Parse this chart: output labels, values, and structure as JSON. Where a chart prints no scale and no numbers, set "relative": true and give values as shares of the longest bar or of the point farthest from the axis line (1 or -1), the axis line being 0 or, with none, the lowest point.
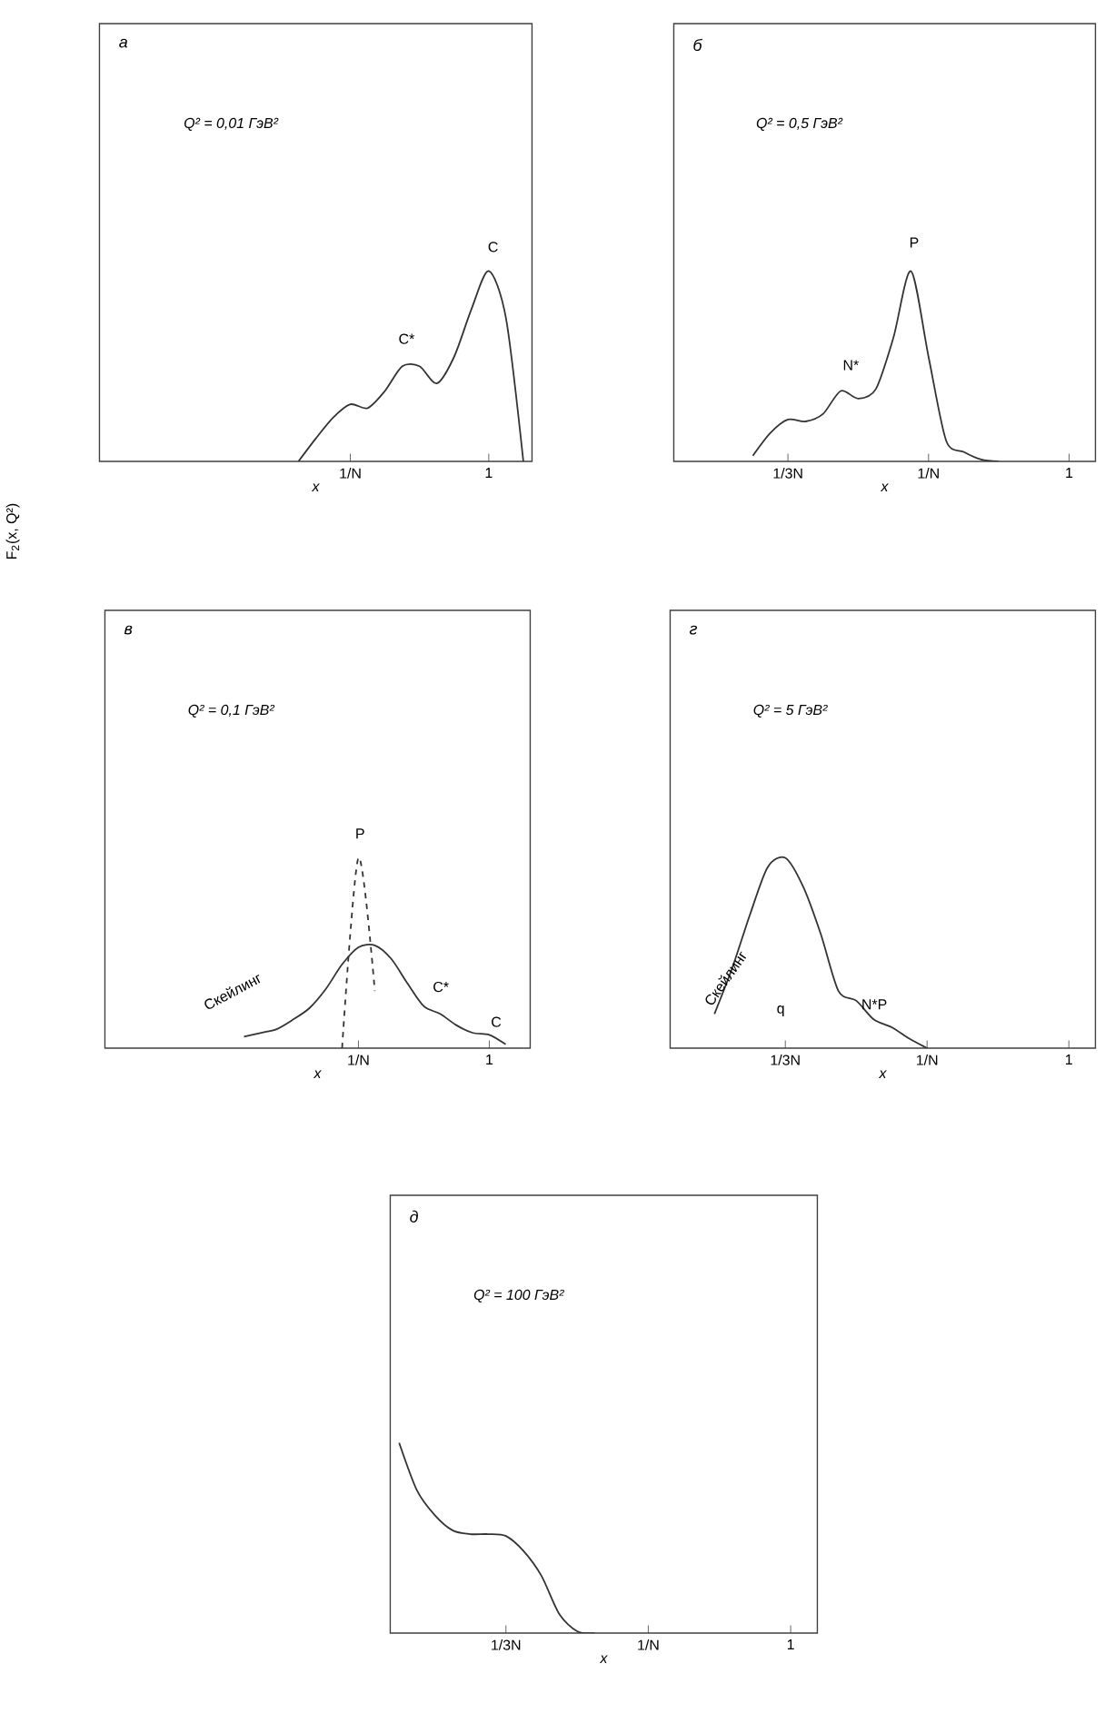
{
  "chart_data": [
    {
      "type": "line",
      "title": "а",
      "subtitle": "Q² = 0,01 ГэВ²",
      "xlabel": "x",
      "ylabel": "F$_{2}$(x, Q²)",
      "relative": true,
      "tick_labels": "x",
      "categories": [
        null,
        null,
        null,
        null,
        null,
        null,
        null,
        null,
        null,
        null,
        null,
        null,
        null,
        null,
        "1/N",
        null,
        null,
        null,
        null,
        null,
        null,
        null,
        "1",
        null,
        null
      ],
      "series": [
        {
          "color": "#333333",
          "values": [
            null,
            null,
            null,
            null,
            null,
            null,
            null,
            null,
            null,
            null,
            null,
            0,
            0.12,
            0.23,
            0.3,
            0.28,
            0.37,
            0.5,
            0.5,
            0.41,
            0.55,
            0.8,
            1,
            0.75,
            0
          ]
        }
      ],
      "annotations": [
        "C*",
        "C"
      ]
    },
    {
      "type": "line",
      "title": "б",
      "subtitle": "Q² = 0,5 ГэВ²",
      "xlabel": "x",
      "relative": true,
      "tick_labels": "x",
      "categories": [
        null,
        null,
        null,
        null,
        null,
        null,
        "1/3N",
        null,
        null,
        null,
        null,
        null,
        null,
        null,
        "1/N",
        null,
        null,
        null,
        null,
        null,
        null,
        null,
        "1",
        null
      ],
      "series": [
        {
          "color": "#333333",
          "values": [
            null,
            null,
            null,
            null,
            0.03,
            0.15,
            0.22,
            0.21,
            0.25,
            0.37,
            0.33,
            0.38,
            0.65,
            1,
            0.55,
            0.11,
            0.05,
            0.01,
            0,
            null,
            null,
            null,
            null,
            null
          ]
        }
      ],
      "annotations": [
        "N*",
        "P"
      ]
    },
    {
      "type": "line",
      "title": "в",
      "subtitle": "Q² = 0,1 ГэВ²",
      "xlabel": "x",
      "relative": true,
      "tick_labels": "x",
      "categories": [
        null,
        null,
        null,
        null,
        null,
        null,
        null,
        null,
        null,
        null,
        null,
        null,
        null,
        null,
        null,
        "1/N",
        null,
        null,
        null,
        null,
        null,
        null,
        null,
        "1",
        null,
        null
      ],
      "series": [
        {
          "color": "#333333",
          "values": [
            null,
            null,
            null,
            null,
            null,
            null,
            null,
            null,
            0.06,
            0.08,
            0.1,
            0.15,
            0.21,
            0.31,
            0.44,
            0.53,
            0.54,
            0.47,
            0.34,
            0.22,
            0.18,
            0.12,
            0.08,
            0.07,
            0.02,
            null
          ]
        },
        {
          "color": "#333333",
          "line_style": "dashed",
          "values": [
            null,
            null,
            null,
            null,
            null,
            null,
            null,
            null,
            null,
            null,
            null,
            null,
            null,
            null,
            0,
            1,
            0.3,
            null,
            null,
            null,
            null,
            null,
            null,
            null,
            null,
            null
          ]
        }
      ],
      "annotations": [
        "Скейлинг",
        "P",
        "C*",
        "C"
      ]
    },
    {
      "type": "line",
      "title": "г",
      "subtitle": "Q² = 5 ГэВ²",
      "xlabel": "x",
      "relative": true,
      "tick_labels": "x",
      "categories": [
        null,
        null,
        null,
        null,
        null,
        null,
        "1/3N",
        null,
        null,
        null,
        null,
        null,
        null,
        null,
        "1/N",
        null,
        null,
        null,
        null,
        null,
        null,
        null,
        "1",
        null
      ],
      "series": [
        {
          "color": "#333333",
          "values": [
            null,
            null,
            0.18,
            0.42,
            0.7,
            0.95,
            1,
            0.85,
            0.6,
            0.3,
            0.25,
            0.15,
            0.11,
            0.05,
            0,
            null,
            null,
            null,
            null,
            null,
            null,
            null,
            null,
            null
          ]
        }
      ],
      "annotations": [
        "Скейлинг",
        "q",
        "N*P"
      ]
    },
    {
      "type": "line",
      "title": "д",
      "subtitle": "Q² = 100 ГэВ²",
      "xlabel": "x",
      "relative": true,
      "tick_labels": "x",
      "categories": [
        null,
        null,
        null,
        null,
        null,
        null,
        "1/3N",
        null,
        null,
        null,
        null,
        null,
        null,
        null,
        "1/N",
        null,
        null,
        null,
        null,
        null,
        null,
        null,
        "1",
        null
      ],
      "series": [
        {
          "color": "#333333",
          "values": [
            1,
            0.75,
            0.62,
            0.54,
            0.52,
            0.52,
            0.51,
            0.43,
            0.3,
            0.1,
            0.01,
            0,
            null,
            null,
            null,
            null,
            null,
            null,
            null,
            null,
            null,
            null,
            null,
            null
          ]
        }
      ]
    }
  ]
}
